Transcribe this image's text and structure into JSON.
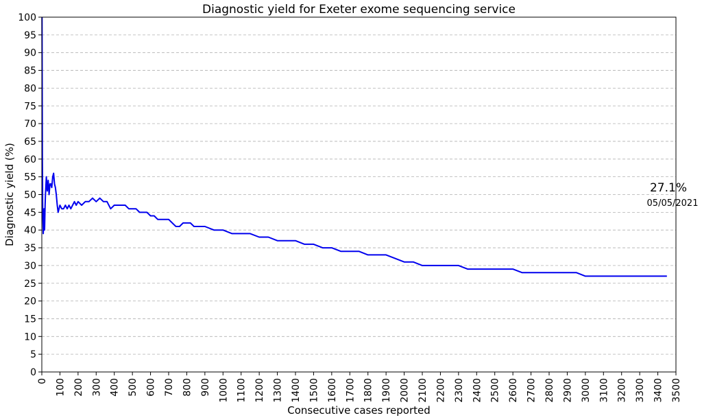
{
  "chart_data": {
    "type": "line",
    "title": "Diagnostic yield for Exeter exome sequencing service",
    "xlabel": "Consecutive cases reported",
    "ylabel": "Diagnostic yield (%)",
    "xlim": [
      0,
      3500
    ],
    "ylim": [
      0,
      100
    ],
    "x_ticks": [
      0,
      100,
      200,
      300,
      400,
      500,
      600,
      700,
      800,
      900,
      1000,
      1100,
      1200,
      1300,
      1400,
      1500,
      1600,
      1700,
      1800,
      1900,
      2000,
      2100,
      2200,
      2300,
      2400,
      2500,
      2600,
      2700,
      2800,
      2900,
      3000,
      3100,
      3200,
      3300,
      3400,
      3500
    ],
    "y_ticks": [
      0,
      5,
      10,
      15,
      20,
      25,
      30,
      35,
      40,
      45,
      50,
      55,
      60,
      65,
      70,
      75,
      80,
      85,
      90,
      95,
      100
    ],
    "grid": "horizontal-dashed",
    "line_color": "#0000ee",
    "series": [
      {
        "x": [
          1,
          3,
          5,
          8,
          10,
          12,
          15,
          18,
          20,
          25,
          30,
          35,
          40,
          45,
          50,
          55,
          60,
          65,
          70,
          75,
          80,
          85,
          90,
          95,
          100,
          110,
          120,
          130,
          140,
          150,
          160,
          170,
          180,
          190,
          200,
          220,
          240,
          260,
          280,
          300,
          320,
          340,
          360,
          380,
          400,
          420,
          440,
          460,
          480,
          500,
          520,
          540,
          560,
          580,
          600,
          620,
          640,
          660,
          680,
          700,
          720,
          740,
          760,
          780,
          800,
          820,
          840,
          860,
          880,
          900,
          950,
          1000,
          1050,
          1100,
          1150,
          1200,
          1250,
          1300,
          1350,
          1400,
          1450,
          1500,
          1550,
          1600,
          1650,
          1700,
          1750,
          1800,
          1850,
          1900,
          1950,
          2000,
          2050,
          2100,
          2150,
          2200,
          2250,
          2300,
          2350,
          2400,
          2450,
          2500,
          2550,
          2600,
          2650,
          2700,
          2750,
          2800,
          2850,
          2900,
          2950,
          3000,
          3050,
          3100,
          3150,
          3200,
          3250,
          3300,
          3350,
          3400,
          3450
        ],
        "y": [
          100,
          60,
          45,
          39,
          42,
          46,
          40,
          47,
          50,
          55,
          51,
          54,
          50,
          53,
          53,
          52,
          55,
          56,
          53,
          52,
          50,
          47,
          45,
          46,
          47,
          46,
          46,
          47,
          46,
          47,
          46,
          47,
          48,
          47,
          48,
          47,
          48,
          48,
          49,
          48,
          49,
          48,
          48,
          46,
          47,
          47,
          47,
          47,
          46,
          46,
          46,
          45,
          45,
          45,
          44,
          44,
          43,
          43,
          43,
          43,
          42,
          41,
          41,
          42,
          42,
          42,
          41,
          41,
          41,
          41,
          40,
          40,
          39,
          39,
          39,
          38,
          38,
          37,
          37,
          37,
          36,
          36,
          35,
          35,
          34,
          34,
          34,
          33,
          33,
          33,
          32,
          31,
          31,
          30,
          30,
          30,
          30,
          30,
          29,
          29,
          29,
          29,
          29,
          29,
          28,
          28,
          28,
          28,
          28,
          28,
          28,
          27,
          27,
          27,
          27,
          27,
          27,
          27,
          27,
          27,
          27
        ]
      }
    ],
    "annotation": {
      "value": "27.1%",
      "date": "05/05/2021"
    }
  }
}
